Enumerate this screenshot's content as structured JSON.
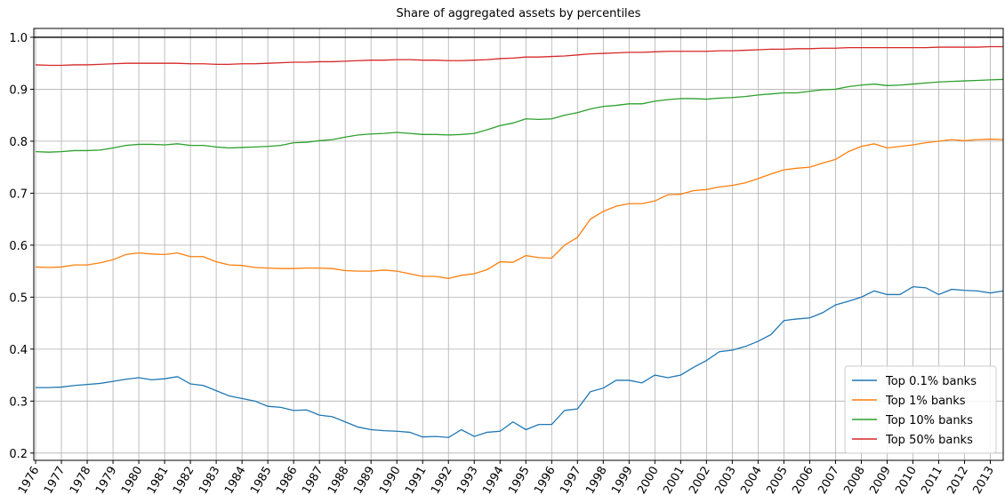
{
  "chart_data": {
    "type": "line",
    "title": "Share of aggregated assets by percentiles",
    "x": [
      1976,
      1976.5,
      1977,
      1977.5,
      1978,
      1978.5,
      1979,
      1979.5,
      1980,
      1980.5,
      1981,
      1981.5,
      1982,
      1982.5,
      1983,
      1983.5,
      1984,
      1984.5,
      1985,
      1985.5,
      1986,
      1986.5,
      1987,
      1987.5,
      1988,
      1988.5,
      1989,
      1989.5,
      1990,
      1990.5,
      1991,
      1991.5,
      1992,
      1992.5,
      1993,
      1993.5,
      1994,
      1994.5,
      1995,
      1995.5,
      1996,
      1996.5,
      1997,
      1997.5,
      1998,
      1998.5,
      1999,
      1999.5,
      2000,
      2000.5,
      2001,
      2001.5,
      2002,
      2002.5,
      2003,
      2003.5,
      2004,
      2004.5,
      2005,
      2005.5,
      2006,
      2006.5,
      2007,
      2007.5,
      2008,
      2008.5,
      2009,
      2009.5,
      2010,
      2010.5,
      2011,
      2011.5,
      2012,
      2012.5,
      2013,
      2013.5
    ],
    "series": [
      {
        "name": "Top 0.1% banks",
        "color": "#1f77b4",
        "values": [
          0.326,
          0.326,
          0.327,
          0.33,
          0.332,
          0.334,
          0.338,
          0.342,
          0.345,
          0.341,
          0.343,
          0.347,
          0.333,
          0.33,
          0.32,
          0.31,
          0.305,
          0.3,
          0.29,
          0.288,
          0.282,
          0.283,
          0.273,
          0.27,
          0.26,
          0.25,
          0.245,
          0.243,
          0.242,
          0.24,
          0.231,
          0.232,
          0.23,
          0.245,
          0.232,
          0.24,
          0.242,
          0.26,
          0.245,
          0.255,
          0.255,
          0.282,
          0.285,
          0.318,
          0.325,
          0.34,
          0.34,
          0.335,
          0.35,
          0.345,
          0.35,
          0.365,
          0.378,
          0.395,
          0.398,
          0.405,
          0.415,
          0.428,
          0.455,
          0.458,
          0.46,
          0.47,
          0.485,
          0.492,
          0.5,
          0.512,
          0.505,
          0.505,
          0.52,
          0.518,
          0.505,
          0.515,
          0.513,
          0.512,
          0.508,
          0.512
        ]
      },
      {
        "name": "Top 1% banks",
        "color": "#ff7f0e",
        "values": [
          0.558,
          0.557,
          0.558,
          0.562,
          0.562,
          0.566,
          0.572,
          0.582,
          0.585,
          0.583,
          0.582,
          0.585,
          0.578,
          0.578,
          0.568,
          0.562,
          0.561,
          0.557,
          0.556,
          0.555,
          0.555,
          0.556,
          0.556,
          0.555,
          0.551,
          0.55,
          0.55,
          0.552,
          0.55,
          0.545,
          0.54,
          0.54,
          0.536,
          0.542,
          0.545,
          0.553,
          0.568,
          0.567,
          0.58,
          0.576,
          0.575,
          0.6,
          0.615,
          0.65,
          0.665,
          0.675,
          0.68,
          0.68,
          0.685,
          0.697,
          0.698,
          0.705,
          0.707,
          0.712,
          0.715,
          0.72,
          0.728,
          0.737,
          0.745,
          0.748,
          0.75,
          0.758,
          0.765,
          0.78,
          0.79,
          0.795,
          0.787,
          0.79,
          0.793,
          0.797,
          0.8,
          0.803,
          0.801,
          0.803,
          0.804,
          0.803
        ]
      },
      {
        "name": "Top 10% banks",
        "color": "#2ca02c",
        "values": [
          0.78,
          0.779,
          0.78,
          0.782,
          0.782,
          0.783,
          0.787,
          0.792,
          0.794,
          0.794,
          0.793,
          0.795,
          0.792,
          0.792,
          0.789,
          0.787,
          0.788,
          0.789,
          0.79,
          0.792,
          0.797,
          0.798,
          0.801,
          0.803,
          0.808,
          0.812,
          0.814,
          0.815,
          0.817,
          0.815,
          0.813,
          0.813,
          0.812,
          0.813,
          0.815,
          0.822,
          0.83,
          0.835,
          0.843,
          0.842,
          0.843,
          0.85,
          0.855,
          0.862,
          0.867,
          0.869,
          0.872,
          0.872,
          0.877,
          0.88,
          0.882,
          0.882,
          0.881,
          0.883,
          0.884,
          0.886,
          0.889,
          0.891,
          0.893,
          0.893,
          0.896,
          0.899,
          0.9,
          0.905,
          0.908,
          0.91,
          0.907,
          0.908,
          0.91,
          0.912,
          0.914,
          0.915,
          0.916,
          0.917,
          0.918,
          0.919
        ]
      },
      {
        "name": "Top 50% banks",
        "color": "#d62728",
        "values": [
          0.947,
          0.946,
          0.946,
          0.947,
          0.947,
          0.948,
          0.949,
          0.95,
          0.95,
          0.95,
          0.95,
          0.95,
          0.949,
          0.949,
          0.948,
          0.948,
          0.949,
          0.949,
          0.95,
          0.951,
          0.952,
          0.952,
          0.953,
          0.953,
          0.954,
          0.955,
          0.956,
          0.956,
          0.957,
          0.957,
          0.956,
          0.956,
          0.955,
          0.955,
          0.956,
          0.957,
          0.959,
          0.96,
          0.962,
          0.962,
          0.963,
          0.964,
          0.966,
          0.968,
          0.969,
          0.97,
          0.971,
          0.971,
          0.972,
          0.973,
          0.973,
          0.973,
          0.973,
          0.974,
          0.974,
          0.975,
          0.976,
          0.977,
          0.977,
          0.978,
          0.978,
          0.979,
          0.979,
          0.98,
          0.98,
          0.98,
          0.98,
          0.98,
          0.98,
          0.98,
          0.981,
          0.981,
          0.981,
          0.981,
          0.982,
          0.982
        ]
      }
    ],
    "hline": {
      "value": 1,
      "color": "#000000"
    },
    "xlim": [
      1975.93,
      2013.5
    ],
    "ylim": [
      0.186,
      1.017
    ],
    "xticks": [
      1976,
      1977,
      1978,
      1979,
      1980,
      1981,
      1982,
      1983,
      1984,
      1985,
      1986,
      1987,
      1988,
      1989,
      1990,
      1991,
      1992,
      1993,
      1994,
      1995,
      1996,
      1997,
      1998,
      1999,
      2000,
      2001,
      2002,
      2003,
      2004,
      2005,
      2006,
      2007,
      2008,
      2009,
      2010,
      2011,
      2012,
      2013
    ],
    "yticks": [
      0.2,
      0.3,
      0.4,
      0.5,
      0.6,
      0.7,
      0.8,
      0.9,
      {
        "value": 1,
        "label": "1.0"
      }
    ],
    "grid": true,
    "legend": "lower right"
  }
}
